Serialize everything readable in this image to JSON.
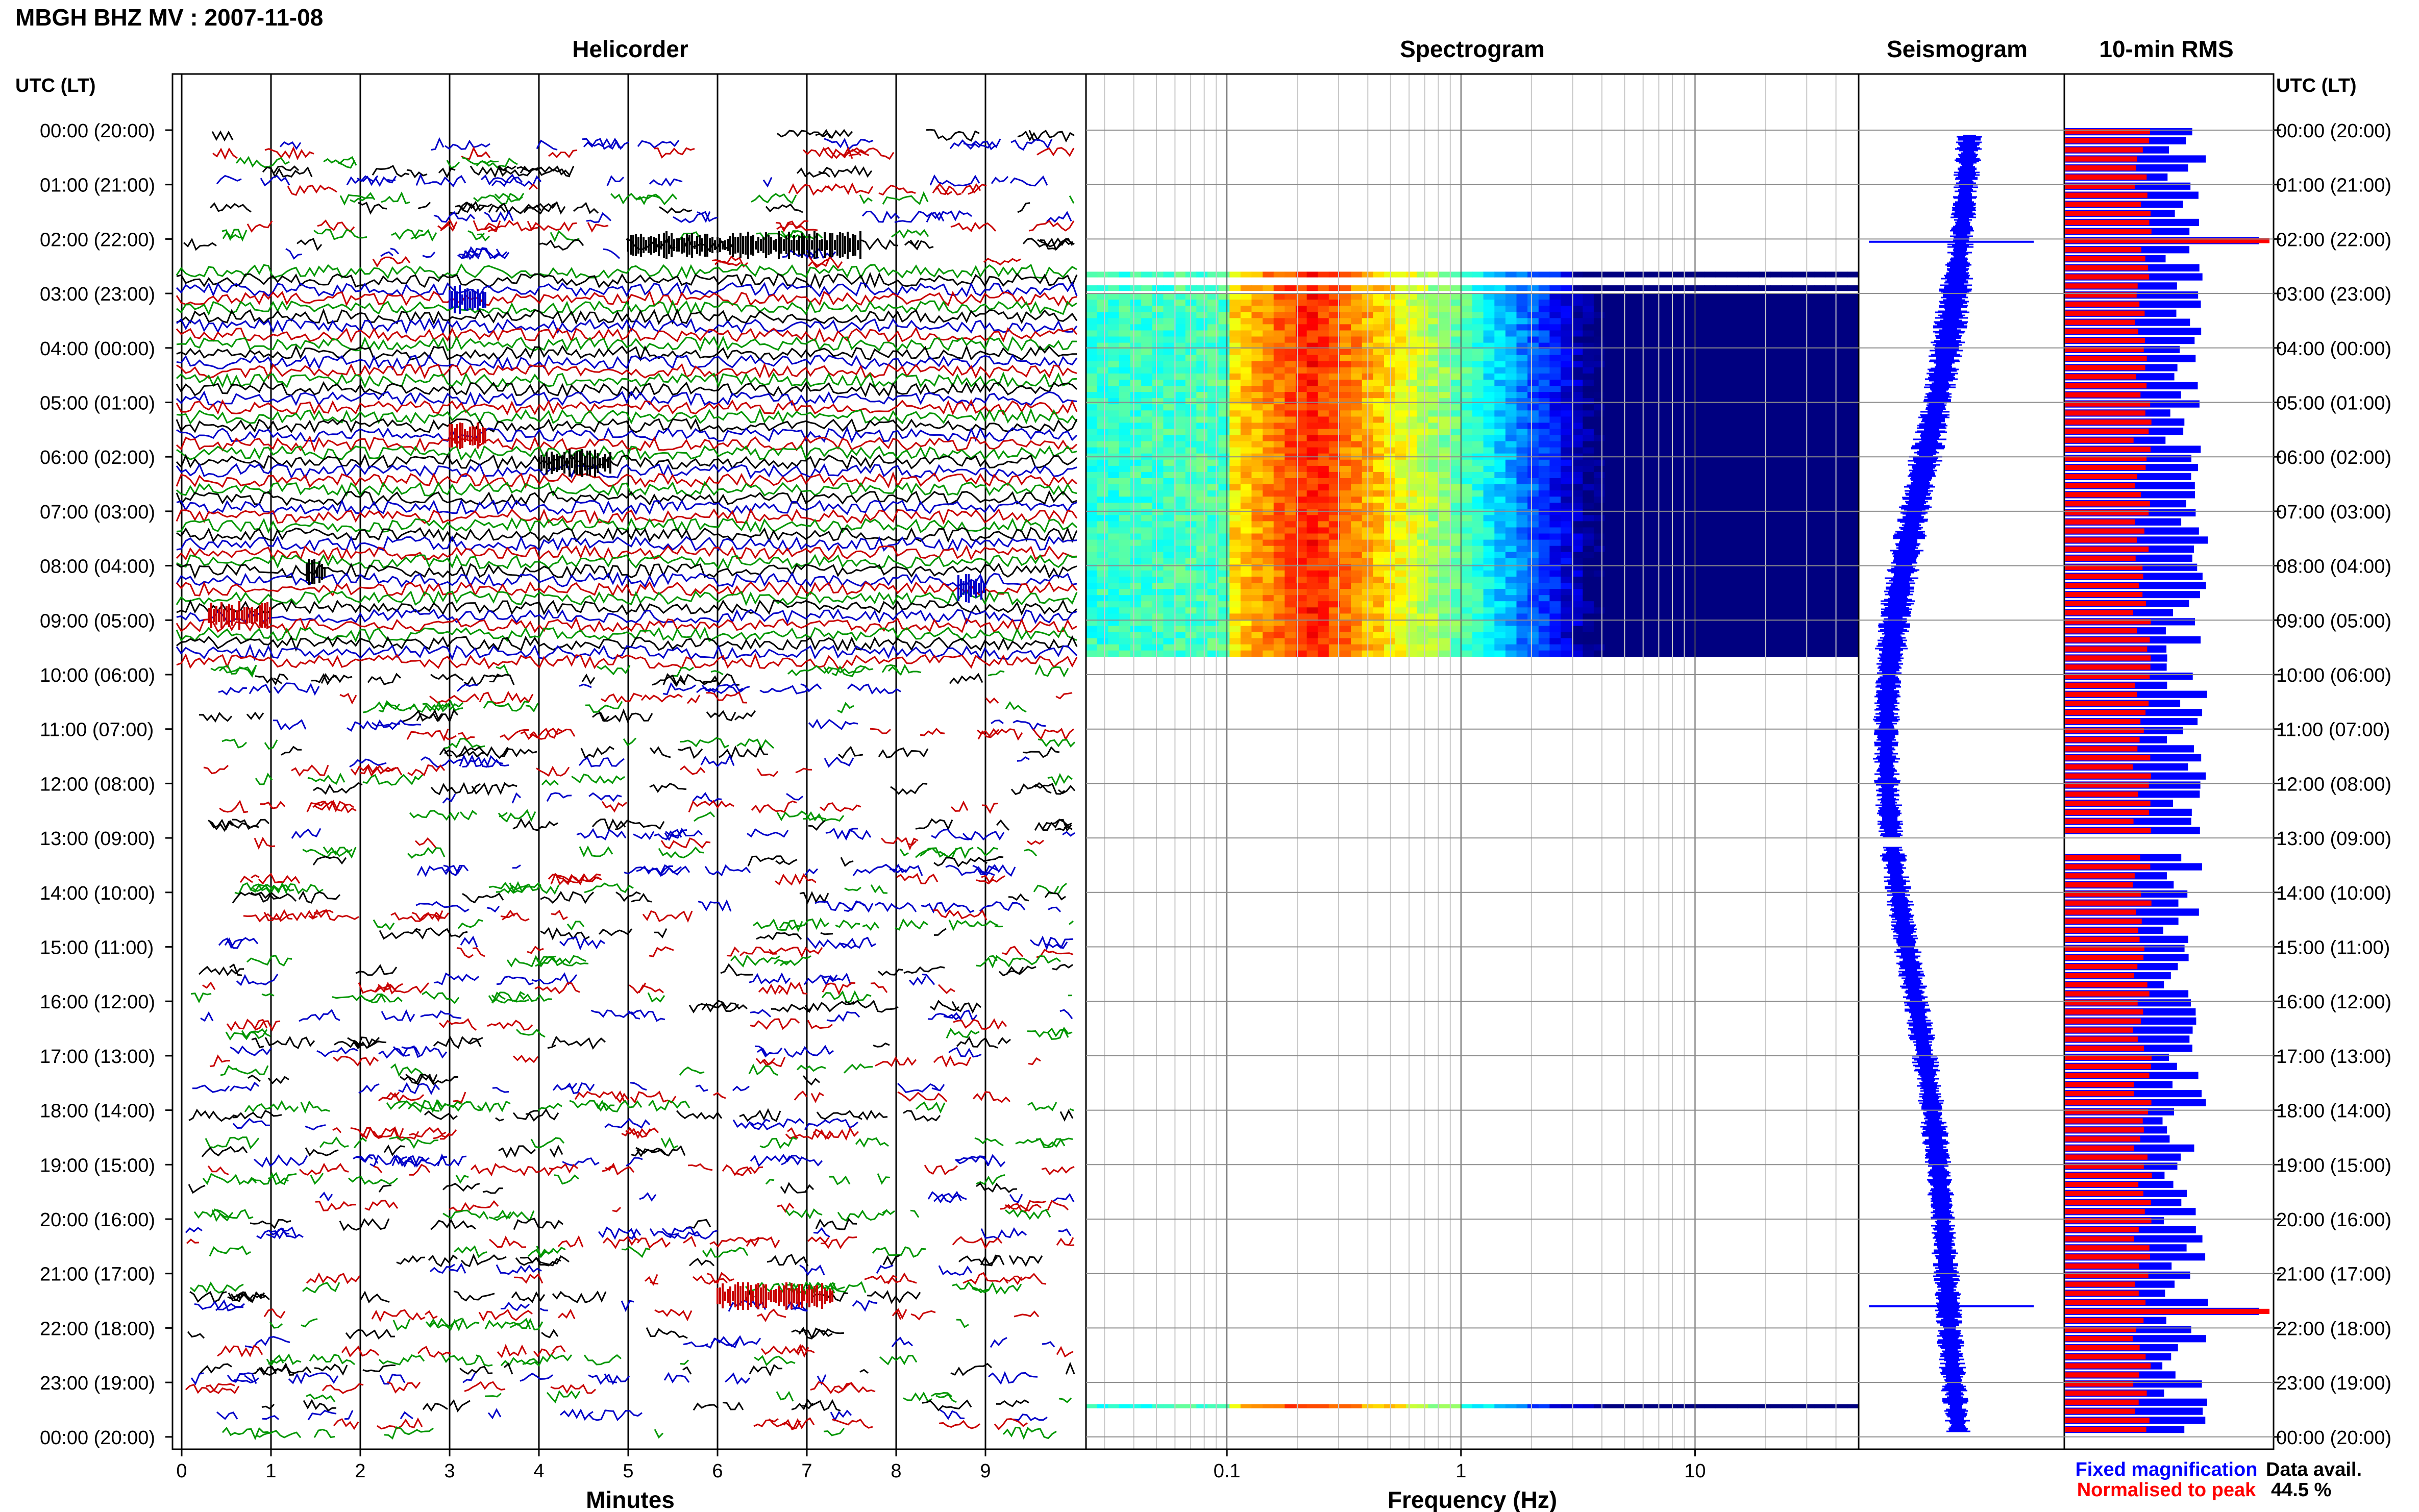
{
  "header": {
    "station_title": "MBGH BHZ MV : 2007-11-08",
    "panel_titles": [
      "Helicorder",
      "Spectrogram",
      "Seismogram",
      "10-min RMS"
    ],
    "time_axis_title": "UTC (LT)"
  },
  "colors": {
    "trace_cycle": [
      "#000000",
      "#0000c8",
      "#c80000",
      "#009600"
    ],
    "fixed": "#0000ff",
    "normalised": "#ff0000",
    "frame": "#000000",
    "grid": "#9a9a9a"
  },
  "chart_data": [
    {
      "type": "line",
      "name": "helicorder",
      "title": "Helicorder",
      "xlabel": "Minutes",
      "xticks": [
        "0",
        "1",
        "2",
        "3",
        "4",
        "5",
        "6",
        "7",
        "8",
        "9"
      ],
      "xlim": [
        0,
        10
      ],
      "y_hour_labels": [
        "00:00 (20:00)",
        "01:00 (21:00)",
        "02:00 (22:00)",
        "03:00 (23:00)",
        "04:00 (00:00)",
        "05:00 (01:00)",
        "06:00 (02:00)",
        "07:00 (03:00)",
        "08:00 (04:00)",
        "09:00 (05:00)",
        "10:00 (06:00)",
        "11:00 (07:00)",
        "12:00 (08:00)",
        "13:00 (09:00)",
        "14:00 (10:00)",
        "15:00 (11:00)",
        "16:00 (12:00)",
        "17:00 (13:00)",
        "18:00 (14:00)",
        "19:00 (15:00)",
        "20:00 (16:00)",
        "21:00 (17:00)",
        "22:00 (18:00)",
        "23:00 (19:00)",
        "00:00 (20:00)"
      ],
      "rows_per_hour": 6,
      "events": [
        {
          "hour": 2.0,
          "minute_start": 5.0,
          "minute_end": 7.6,
          "color": "#000000"
        },
        {
          "hour": 3.0,
          "minute_start": 3.0,
          "minute_end": 3.4,
          "color": "#0000c8"
        },
        {
          "hour": 5.5,
          "minute_start": 3.0,
          "minute_end": 3.4,
          "color": "#c80000"
        },
        {
          "hour": 6.0,
          "minute_start": 4.0,
          "minute_end": 4.8,
          "color": "#000000"
        },
        {
          "hour": 8.0,
          "minute_start": 1.4,
          "minute_end": 1.6,
          "color": "#000000"
        },
        {
          "hour": 8.3,
          "minute_start": 8.7,
          "minute_end": 9.0,
          "color": "#0000c8"
        },
        {
          "hour": 8.8,
          "minute_start": 0.3,
          "minute_end": 1.0,
          "color": "#c80000"
        },
        {
          "hour": 21.3,
          "minute_start": 6.0,
          "minute_end": 7.3,
          "color": "#c80000"
        }
      ]
    },
    {
      "type": "heatmap",
      "name": "spectrogram",
      "title": "Spectrogram",
      "xlabel": "Frequency (Hz)",
      "xscale": "log",
      "xlim": [
        0.025,
        50
      ],
      "xticks": [
        0.1,
        1,
        10
      ],
      "xtick_labels": [
        "0.1",
        "1",
        "10"
      ],
      "ylim_hours": [
        0,
        24
      ],
      "data_blocks": [
        {
          "hour_start": 2.6,
          "hour_end": 2.7
        },
        {
          "hour_start": 2.85,
          "hour_end": 2.95
        },
        {
          "hour_start": 3.0,
          "hour_end": 9.67
        },
        {
          "hour_start": 23.4,
          "hour_end": 23.47
        }
      ],
      "peak_band_hz": [
        0.15,
        0.35
      ],
      "colormap": "jet"
    },
    {
      "type": "line",
      "name": "seismogram",
      "title": "Seismogram",
      "ylim_hours": [
        0,
        24
      ],
      "spikes_hours": [
        2.05,
        21.6
      ]
    },
    {
      "type": "bar",
      "name": "rms",
      "title": "10-min RMS",
      "orientation": "horizontal",
      "bins": 144,
      "gap_hours": [
        13.0,
        13.17
      ],
      "red_peak_hours": [
        2.05,
        21.6
      ],
      "legend": [
        {
          "label": "Fixed magnification",
          "color": "#0000ff"
        },
        {
          "label": "Normalised to peak",
          "color": "#ff0000"
        }
      ]
    }
  ],
  "availability": {
    "label": "Data avail.",
    "value": "44.5 %"
  }
}
